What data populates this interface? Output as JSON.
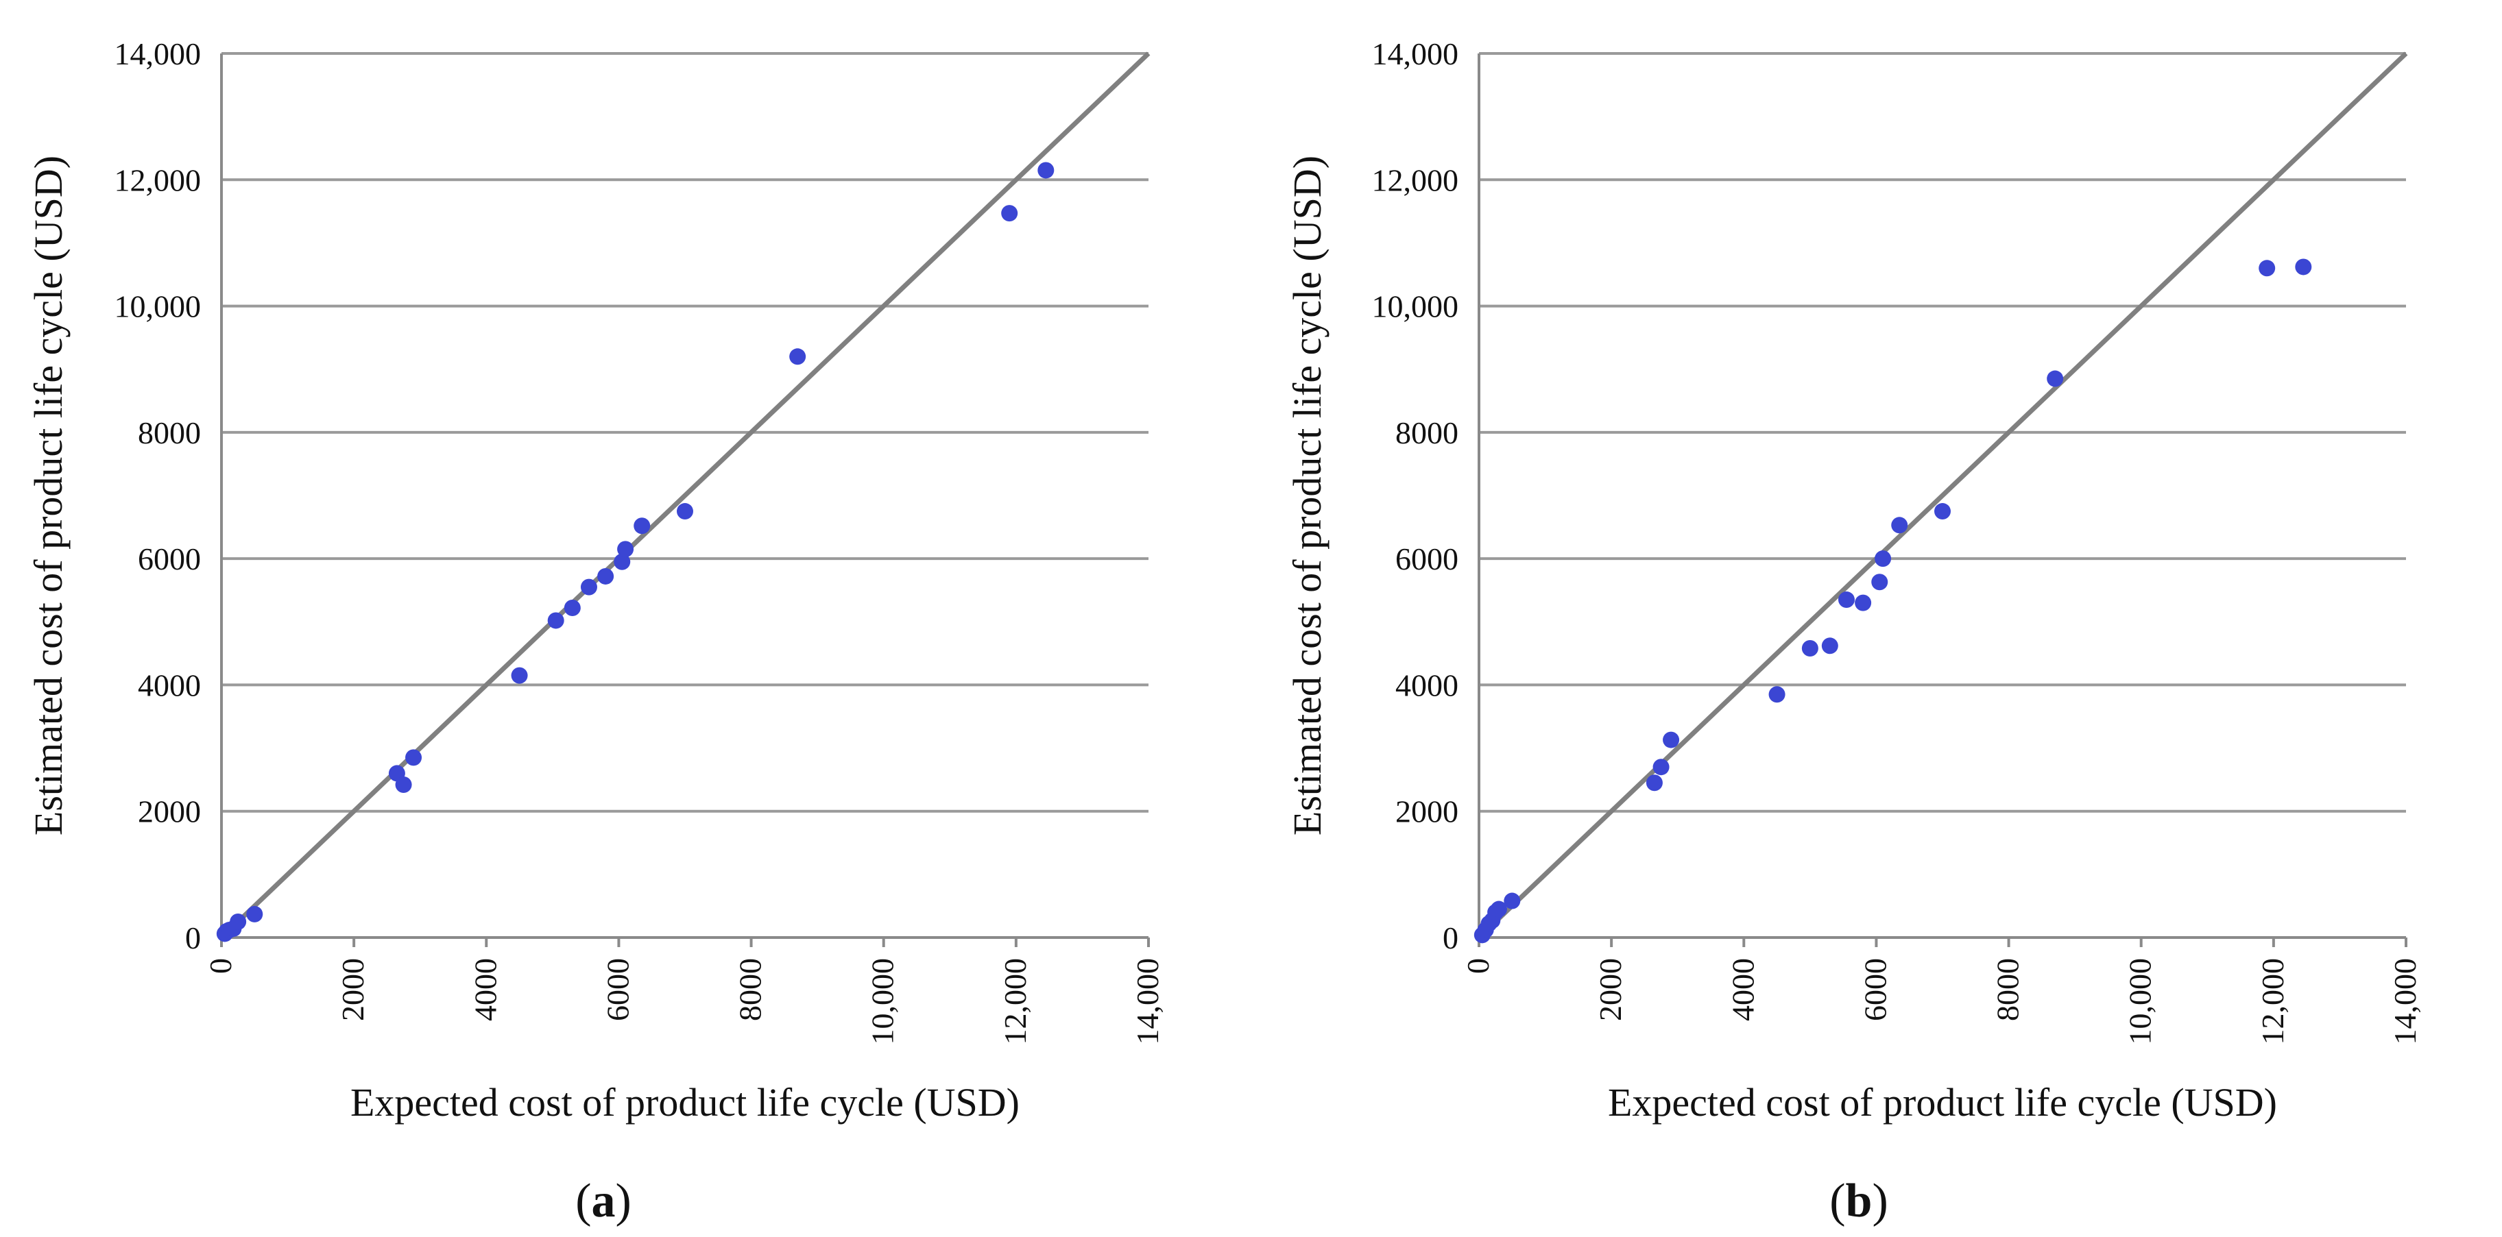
{
  "chart_data": [
    {
      "type": "scatter",
      "panel_label": "a",
      "xlabel": "Expected cost of product life cycle (USD)",
      "ylabel": "Estimated cost of product life cycle (USD)",
      "xlim": [
        0,
        14000
      ],
      "ylim": [
        0,
        14000
      ],
      "x_ticks": [
        "0",
        "2000",
        "4000",
        "6000",
        "8000",
        "10,000",
        "12,000",
        "14,000"
      ],
      "y_ticks": [
        "0",
        "2000",
        "4000",
        "6000",
        "8000",
        "10,000",
        "12,000",
        "14,000"
      ],
      "grid": "horizontal",
      "reference_line": [
        [
          0,
          0
        ],
        [
          14000,
          14000
        ]
      ],
      "point_color": "#3b46d3",
      "line_color": "#808080",
      "points": [
        [
          50,
          60
        ],
        [
          80,
          100
        ],
        [
          120,
          120
        ],
        [
          180,
          140
        ],
        [
          250,
          250
        ],
        [
          500,
          370
        ],
        [
          2650,
          2600
        ],
        [
          2750,
          2420
        ],
        [
          2900,
          2850
        ],
        [
          4500,
          4150
        ],
        [
          5050,
          5020
        ],
        [
          5300,
          5220
        ],
        [
          5550,
          5550
        ],
        [
          5800,
          5720
        ],
        [
          6050,
          5950
        ],
        [
          6100,
          6150
        ],
        [
          6350,
          6520
        ],
        [
          7000,
          6750
        ],
        [
          8700,
          9200
        ],
        [
          11900,
          11470
        ],
        [
          12450,
          12150
        ]
      ]
    },
    {
      "type": "scatter",
      "panel_label": "b",
      "xlabel": "Expected cost of product life cycle (USD)",
      "ylabel": "Estimated cost of product life cycle (USD)",
      "xlim": [
        0,
        14000
      ],
      "ylim": [
        0,
        14000
      ],
      "x_ticks": [
        "0",
        "2000",
        "4000",
        "6000",
        "8000",
        "10,000",
        "12,000",
        "14,000"
      ],
      "y_ticks": [
        "0",
        "2000",
        "4000",
        "6000",
        "8000",
        "10,000",
        "12,000",
        "14,000"
      ],
      "grid": "horizontal",
      "reference_line": [
        [
          0,
          0
        ],
        [
          14000,
          14000
        ]
      ],
      "point_color": "#3b46d3",
      "line_color": "#808080",
      "points": [
        [
          50,
          40
        ],
        [
          100,
          120
        ],
        [
          150,
          220
        ],
        [
          200,
          270
        ],
        [
          250,
          400
        ],
        [
          300,
          450
        ],
        [
          500,
          580
        ],
        [
          2650,
          2450
        ],
        [
          2750,
          2700
        ],
        [
          2900,
          3130
        ],
        [
          4500,
          3850
        ],
        [
          5000,
          4580
        ],
        [
          5300,
          4620
        ],
        [
          5550,
          5350
        ],
        [
          5800,
          5300
        ],
        [
          6050,
          5630
        ],
        [
          6100,
          6000
        ],
        [
          6350,
          6530
        ],
        [
          7000,
          6750
        ],
        [
          8700,
          8850
        ],
        [
          11900,
          10600
        ],
        [
          12450,
          10620
        ]
      ]
    }
  ]
}
